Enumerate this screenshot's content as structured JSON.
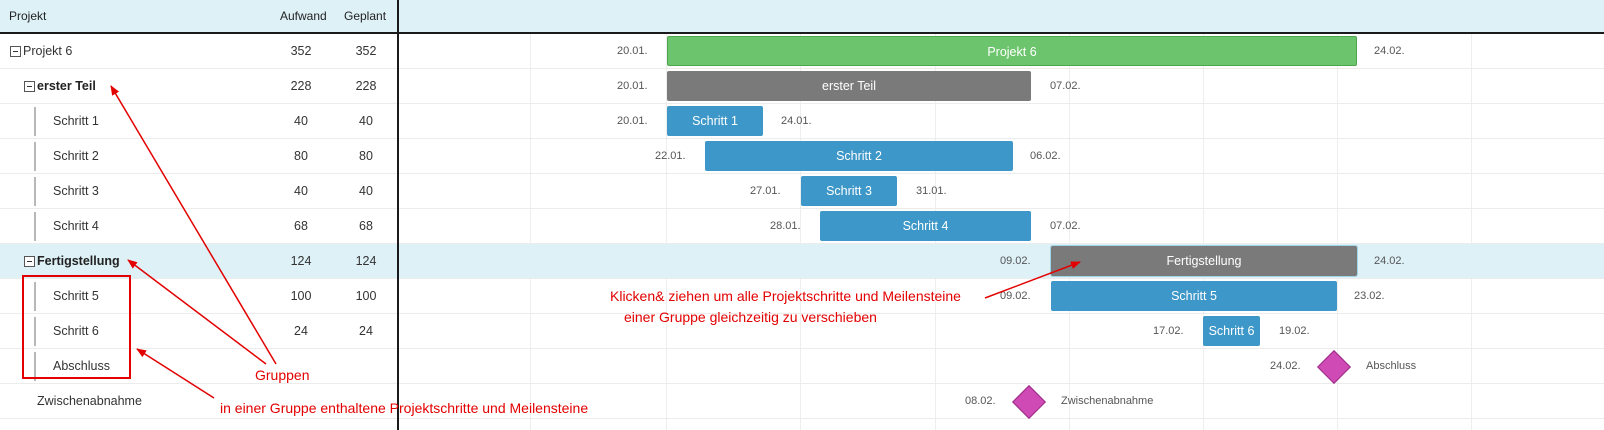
{
  "header": {
    "col_project": "Projekt",
    "col_aufwand": "Aufwand",
    "col_geplant": "Geplant"
  },
  "rows": [
    {
      "name": "Projekt 6",
      "aufwand": "352",
      "geplant": "352",
      "start": "20.01.",
      "end": "24.02.",
      "bar_label": "Projekt 6",
      "kind": "project"
    },
    {
      "name": "erster Teil",
      "aufwand": "228",
      "geplant": "228",
      "start": "20.01.",
      "end": "07.02.",
      "bar_label": "erster Teil",
      "kind": "group"
    },
    {
      "name": "Schritt 1",
      "aufwand": "40",
      "geplant": "40",
      "start": "20.01.",
      "end": "24.01.",
      "bar_label": "Schritt 1",
      "kind": "step"
    },
    {
      "name": "Schritt 2",
      "aufwand": "80",
      "geplant": "80",
      "start": "22.01.",
      "end": "06.02.",
      "bar_label": "Schritt 2",
      "kind": "step"
    },
    {
      "name": "Schritt 3",
      "aufwand": "40",
      "geplant": "40",
      "start": "27.01.",
      "end": "31.01.",
      "bar_label": "Schritt 3",
      "kind": "step"
    },
    {
      "name": "Schritt 4",
      "aufwand": "68",
      "geplant": "68",
      "start": "28.01.",
      "end": "07.02.",
      "bar_label": "Schritt 4",
      "kind": "step"
    },
    {
      "name": "Fertigstellung",
      "aufwand": "124",
      "geplant": "124",
      "start": "09.02.",
      "end": "24.02.",
      "bar_label": "Fertigstellung",
      "kind": "group",
      "selected": true
    },
    {
      "name": "Schritt 5",
      "aufwand": "100",
      "geplant": "100",
      "start": "09.02.",
      "end": "23.02.",
      "bar_label": "Schritt 5",
      "kind": "step"
    },
    {
      "name": "Schritt 6",
      "aufwand": "24",
      "geplant": "24",
      "start": "17.02.",
      "end": "19.02.",
      "bar_label": "Schritt 6",
      "kind": "step"
    },
    {
      "name": "Abschluss",
      "aufwand": "",
      "geplant": "",
      "date": "24.02.",
      "milestone_label": "Abschluss",
      "kind": "milestone"
    },
    {
      "name": "Zwischenabnahme",
      "aufwand": "",
      "geplant": "",
      "date": "08.02.",
      "milestone_label": "Zwischenabnahme",
      "kind": "milestone"
    }
  ],
  "annotations": {
    "drag_line1": "Klicken& ziehen um alle Projektschritte und Meilensteine",
    "drag_line2": "einer Gruppe gleichzeitig zu verschieben",
    "groups": "Gruppen",
    "contained": "in einer Gruppe enthaltene Projektschritte und Meilensteine"
  },
  "colors": {
    "project_bar": "#6cc56c",
    "group_bar": "#7a7a7a",
    "step_bar": "#3d97c8",
    "milestone": "#cf4ab4",
    "annotation": "#e30000",
    "selected_row": "#ddf1f7"
  }
}
